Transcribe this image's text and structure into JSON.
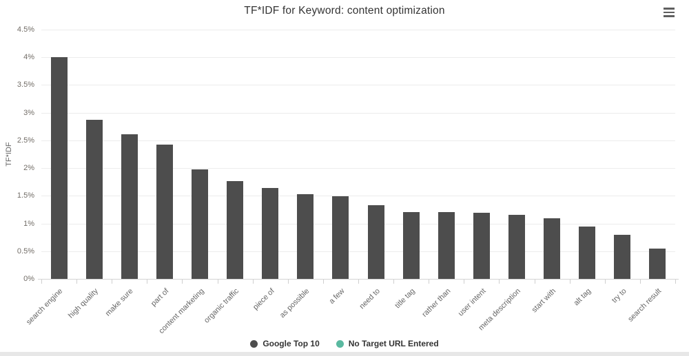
{
  "header": {
    "context_menu_icon": "hamburger-menu-icon"
  },
  "chart_data": {
    "type": "bar",
    "title": "TF*IDF for Keyword: content optimization",
    "xlabel": "",
    "ylabel": "TF*IDF",
    "ylim": [
      0,
      4.5
    ],
    "ytick_step": 0.5,
    "ytick_labels": [
      "0%",
      "0.5%",
      "1%",
      "1.5%",
      "2%",
      "2.5%",
      "3%",
      "3.5%",
      "4%",
      "4.5%"
    ],
    "grid": true,
    "legend_position": "bottom",
    "categories": [
      "search engine",
      "high quality",
      "make sure",
      "part of",
      "content marketing",
      "organic traffic",
      "piece of",
      "as possible",
      "a few",
      "need to",
      "title tag",
      "rather than",
      "user intent",
      "meta description",
      "start with",
      "alt tag",
      "try to",
      "search result"
    ],
    "series": [
      {
        "name": "Google Top 10",
        "color": "#4d4d4d",
        "values": [
          4.0,
          2.87,
          2.61,
          2.43,
          1.98,
          1.76,
          1.64,
          1.53,
          1.49,
          1.33,
          1.21,
          1.21,
          1.19,
          1.16,
          1.09,
          0.95,
          0.79,
          0.55
        ]
      },
      {
        "name": "No Target URL Entered",
        "color": "#5ab9a0",
        "values": []
      }
    ]
  }
}
